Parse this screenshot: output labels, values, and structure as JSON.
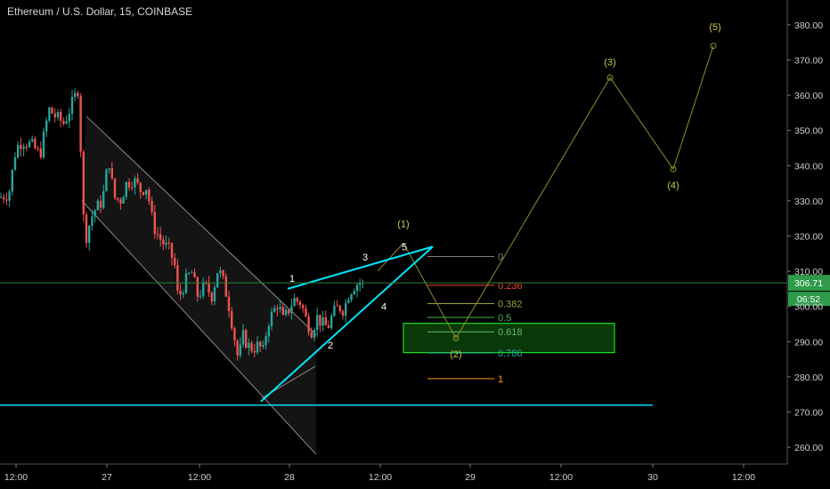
{
  "header": {
    "title": "Ethereum / U.S. Dollar, 15, COINBASE"
  },
  "colors": {
    "background": "#000000",
    "up": "#26a69a",
    "down": "#ef5350",
    "current_line": "#2e7d32",
    "trend": "#00e5ff",
    "elliott": "#c9c94a",
    "zone": "#19e019"
  },
  "chart_data": {
    "type": "candlestick",
    "title": "Ethereum / U.S. Dollar, 15, COINBASE",
    "ylim": [
      257,
      384
    ],
    "xlim": [
      0,
      920
    ],
    "y_ticks": [
      260,
      270,
      280,
      290,
      300,
      310,
      320,
      330,
      340,
      350,
      360,
      370,
      380
    ],
    "y_tick_labels": [
      "260.00",
      "270.00",
      "280.00",
      "290.00",
      "300.00",
      "310.00",
      "320.00",
      "330.00",
      "340.00",
      "350.00",
      "360.00",
      "370.00",
      "380.00"
    ],
    "x_ticks": [
      {
        "x": 18,
        "label": "12:00"
      },
      {
        "x": 120,
        "label": "27"
      },
      {
        "x": 224,
        "label": "12:00"
      },
      {
        "x": 325,
        "label": "28"
      },
      {
        "x": 427,
        "label": "12:00"
      },
      {
        "x": 528,
        "label": "29"
      },
      {
        "x": 630,
        "label": "12:00"
      },
      {
        "x": 733,
        "label": "30"
      },
      {
        "x": 835,
        "label": "12:00"
      }
    ],
    "current_price": {
      "value": 306.71,
      "label": "306.71",
      "countdown": "06:52"
    },
    "price_path": [
      [
        0,
        331
      ],
      [
        10,
        332
      ],
      [
        18,
        345
      ],
      [
        25,
        347
      ],
      [
        35,
        346
      ],
      [
        45,
        343
      ],
      [
        55,
        356
      ],
      [
        62,
        354
      ],
      [
        72,
        352
      ],
      [
        80,
        357
      ],
      [
        88,
        362
      ],
      [
        92,
        336
      ],
      [
        95,
        318
      ],
      [
        100,
        323
      ],
      [
        105,
        327
      ],
      [
        115,
        330
      ],
      [
        122,
        342
      ],
      [
        128,
        331
      ],
      [
        135,
        330
      ],
      [
        142,
        335
      ],
      [
        150,
        336
      ],
      [
        158,
        333
      ],
      [
        165,
        334
      ],
      [
        172,
        323
      ],
      [
        178,
        320
      ],
      [
        183,
        318
      ],
      [
        190,
        316
      ],
      [
        196,
        312
      ],
      [
        200,
        302
      ],
      [
        208,
        307
      ],
      [
        215,
        310
      ],
      [
        222,
        303
      ],
      [
        230,
        306
      ],
      [
        238,
        303
      ],
      [
        245,
        311
      ],
      [
        252,
        306
      ],
      [
        258,
        299
      ],
      [
        264,
        290
      ],
      [
        268,
        284
      ],
      [
        272,
        292
      ],
      [
        278,
        289
      ],
      [
        284,
        288
      ],
      [
        290,
        289
      ],
      [
        296,
        287
      ],
      [
        300,
        295
      ],
      [
        306,
        298
      ],
      [
        312,
        301
      ],
      [
        318,
        296
      ],
      [
        324,
        299
      ],
      [
        330,
        302
      ],
      [
        338,
        301
      ],
      [
        344,
        296
      ],
      [
        350,
        293
      ],
      [
        356,
        297
      ],
      [
        362,
        295
      ],
      [
        368,
        294
      ],
      [
        374,
        298
      ],
      [
        380,
        300
      ],
      [
        386,
        299
      ],
      [
        392,
        304
      ],
      [
        398,
        306
      ],
      [
        404,
        307
      ],
      [
        408,
        306
      ]
    ],
    "support_line": {
      "value": 272,
      "x_range": [
        0,
        733
      ],
      "color": "#00e5ff"
    },
    "channel": {
      "upper": [
        [
          97,
          354
        ],
        [
          355,
          292
        ]
      ],
      "lower": [
        [
          92,
          330
        ],
        [
          355,
          258
        ]
      ],
      "bottom_line": [
        [
          294,
          274
        ],
        [
          354,
          283
        ]
      ]
    },
    "wedge": {
      "top": [
        [
          323,
          305
        ],
        [
          486,
          317
        ]
      ],
      "bottom": [
        [
          293,
          273
        ],
        [
          486,
          317
        ]
      ]
    },
    "wave_labels_small": [
      {
        "label": "1",
        "x": 328,
        "y": 307
      },
      {
        "label": "2",
        "x": 371,
        "y": 288
      },
      {
        "label": "3",
        "x": 410,
        "y": 313
      },
      {
        "label": "4",
        "x": 431,
        "y": 299
      },
      {
        "label": "5",
        "x": 454,
        "y": 316
      }
    ],
    "elliott_path": [
      [
        424,
        310
      ],
      [
        453,
        318
      ],
      [
        512,
        291
      ],
      [
        685,
        365
      ],
      [
        756,
        339
      ],
      [
        801,
        374
      ]
    ],
    "elliott_labels": [
      {
        "label": "(1)",
        "x": 453,
        "y": 322
      },
      {
        "label": "(2)",
        "x": 512,
        "y": 288
      },
      {
        "label": "(3)",
        "x": 685,
        "y": 368
      },
      {
        "label": "(4)",
        "x": 756,
        "y": 336
      },
      {
        "label": "(5)",
        "x": 803,
        "y": 378
      }
    ],
    "fibonacci": {
      "x_range": [
        480,
        555
      ],
      "levels": [
        {
          "label": "0",
          "value": 314.2,
          "color": "#7f7f7f"
        },
        {
          "label": "0.236",
          "value": 306.0,
          "color": "#f44336"
        },
        {
          "label": "0.382",
          "value": 300.8,
          "color": "#9e9e3a"
        },
        {
          "label": "0.5",
          "value": 296.9,
          "color": "#4caf50"
        },
        {
          "label": "0.618",
          "value": 292.8,
          "color": "#66bb6a"
        },
        {
          "label": "0.786",
          "value": 286.8,
          "color": "#26a69a"
        },
        {
          "label": "1",
          "value": 279.5,
          "color": "#ff9800"
        }
      ],
      "zone": {
        "from": 286.9,
        "to": 295.2,
        "x_range": [
          453,
          690
        ]
      }
    }
  }
}
